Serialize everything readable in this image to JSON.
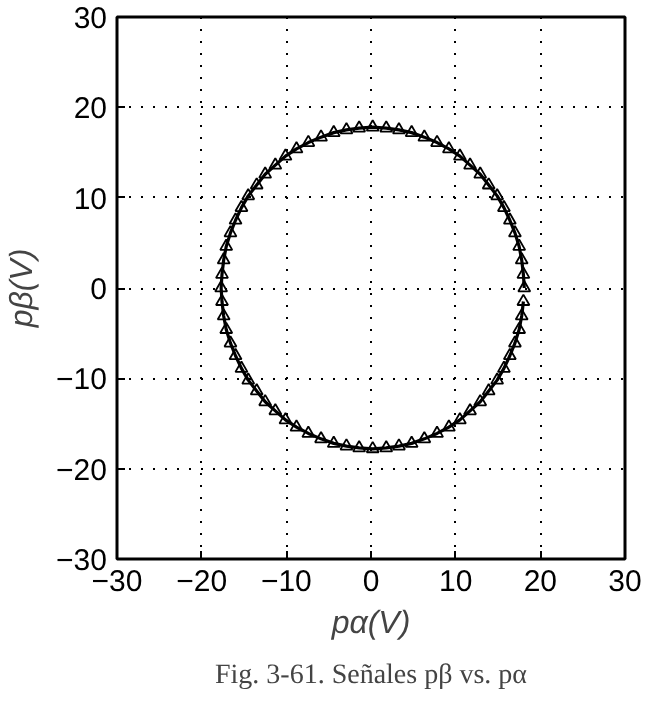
{
  "chart_data": {
    "type": "line",
    "marker": "triangle",
    "line_style": "solid",
    "xlabel": "pα(V)",
    "ylabel": "pβ(V)",
    "annotations": [
      "Fig. 3-61. Señales pβ vs. pα"
    ],
    "xlim": [
      -30,
      30
    ],
    "ylim": [
      -30,
      30
    ],
    "xticks": [
      -30,
      -20,
      -10,
      0,
      10,
      20,
      30
    ],
    "yticks": [
      -30,
      -20,
      -10,
      0,
      10,
      20,
      30
    ],
    "grid": true,
    "series": [
      {
        "color": "#000000",
        "x": [
          18.1,
          18.0,
          17.8,
          17.5,
          17.0,
          16.4,
          15.7,
          14.9,
          13.9,
          12.9,
          11.7,
          10.5,
          9.2,
          7.8,
          6.3,
          4.8,
          3.3,
          1.8,
          0.2,
          -1.4,
          -2.9,
          -4.4,
          -5.9,
          -7.4,
          -8.8,
          -10.1,
          -11.3,
          -12.5,
          -13.5,
          -14.5,
          -15.3,
          -16.0,
          -16.6,
          -17.1,
          -17.4,
          -17.6,
          -17.7,
          -17.6,
          -17.4,
          -17.1,
          -16.6,
          -16.0,
          -15.3,
          -14.5,
          -13.5,
          -12.5,
          -11.3,
          -10.1,
          -8.8,
          -7.4,
          -5.9,
          -4.4,
          -2.9,
          -1.4,
          0.2,
          1.8,
          3.3,
          4.8,
          6.3,
          7.8,
          9.2,
          10.5,
          11.7,
          12.9,
          13.9,
          14.9,
          15.7,
          16.4,
          17.0,
          17.5,
          17.8,
          18.0
        ],
        "values": [
          0,
          1.5,
          3.1,
          4.6,
          6.1,
          7.5,
          8.9,
          10.2,
          11.4,
          12.6,
          13.6,
          14.6,
          15.4,
          16.1,
          16.7,
          17.2,
          17.5,
          17.7,
          17.8,
          17.7,
          17.5,
          17.2,
          16.7,
          16.1,
          15.4,
          14.6,
          13.6,
          12.6,
          11.4,
          10.2,
          8.9,
          7.5,
          6.1,
          4.6,
          3.1,
          1.5,
          0,
          -1.5,
          -3.1,
          -4.6,
          -6.1,
          -7.5,
          -8.9,
          -10.2,
          -11.4,
          -12.6,
          -13.6,
          -14.6,
          -15.4,
          -16.1,
          -16.7,
          -17.2,
          -17.5,
          -17.7,
          -17.8,
          -17.7,
          -17.5,
          -17.2,
          -16.7,
          -16.1,
          -15.4,
          -14.6,
          -13.6,
          -12.6,
          -11.4,
          -10.2,
          -8.9,
          -7.5,
          -6.1,
          -4.6,
          -3.1,
          -1.5
        ]
      }
    ]
  }
}
